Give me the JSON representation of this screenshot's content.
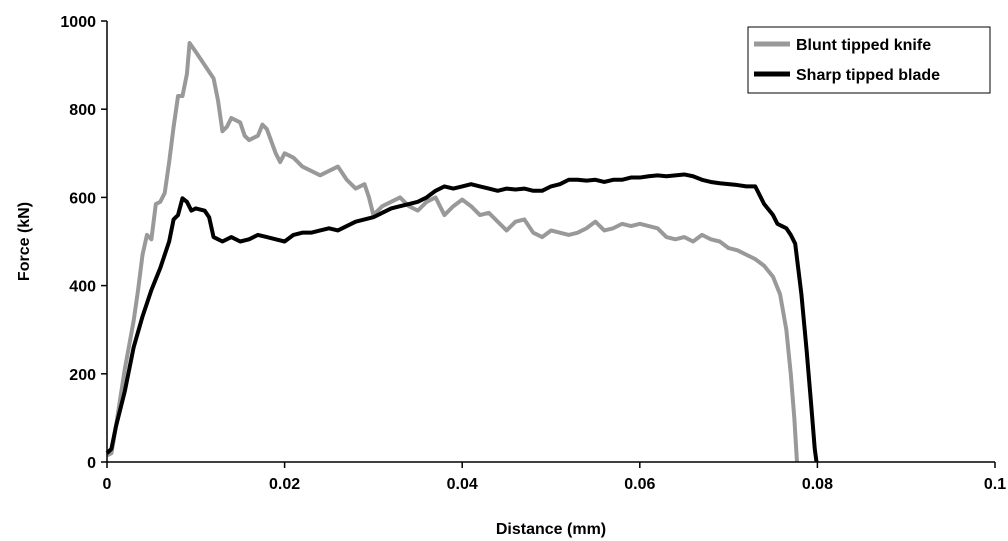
{
  "chart_data": {
    "type": "line",
    "title": "",
    "xlabel": "Distance (mm)",
    "ylabel": "Force (kN)",
    "xlim": [
      0,
      0.1
    ],
    "ylim": [
      0,
      1000
    ],
    "x_ticks": [
      0,
      0.02,
      0.04,
      0.06,
      0.08,
      0.1
    ],
    "x_tick_labels": [
      "0",
      "0.02",
      "0.04",
      "0.06",
      "0.08",
      "0.1"
    ],
    "y_ticks": [
      0,
      200,
      400,
      600,
      800,
      1000
    ],
    "y_tick_labels": [
      "0",
      "200",
      "400",
      "600",
      "800",
      "1000"
    ],
    "grid": false,
    "legend_position": "top-right",
    "series": [
      {
        "name": "Blunt tipped knife",
        "color": "#999999",
        "points": [
          [
            0.0,
            15
          ],
          [
            0.0005,
            20
          ],
          [
            0.001,
            80
          ],
          [
            0.002,
            210
          ],
          [
            0.003,
            320
          ],
          [
            0.0035,
            390
          ],
          [
            0.004,
            470
          ],
          [
            0.0045,
            515
          ],
          [
            0.005,
            505
          ],
          [
            0.0055,
            585
          ],
          [
            0.006,
            590
          ],
          [
            0.0065,
            610
          ],
          [
            0.007,
            680
          ],
          [
            0.0075,
            760
          ],
          [
            0.008,
            830
          ],
          [
            0.0085,
            830
          ],
          [
            0.009,
            880
          ],
          [
            0.0093,
            950
          ],
          [
            0.01,
            930
          ],
          [
            0.011,
            900
          ],
          [
            0.012,
            870
          ],
          [
            0.0125,
            820
          ],
          [
            0.013,
            750
          ],
          [
            0.0135,
            760
          ],
          [
            0.014,
            780
          ],
          [
            0.015,
            770
          ],
          [
            0.0155,
            740
          ],
          [
            0.016,
            730
          ],
          [
            0.017,
            740
          ],
          [
            0.0175,
            765
          ],
          [
            0.018,
            755
          ],
          [
            0.019,
            700
          ],
          [
            0.0195,
            680
          ],
          [
            0.02,
            700
          ],
          [
            0.021,
            690
          ],
          [
            0.022,
            670
          ],
          [
            0.023,
            660
          ],
          [
            0.024,
            650
          ],
          [
            0.025,
            660
          ],
          [
            0.026,
            670
          ],
          [
            0.027,
            640
          ],
          [
            0.028,
            620
          ],
          [
            0.029,
            630
          ],
          [
            0.0295,
            600
          ],
          [
            0.03,
            560
          ],
          [
            0.031,
            580
          ],
          [
            0.032,
            590
          ],
          [
            0.033,
            600
          ],
          [
            0.034,
            580
          ],
          [
            0.035,
            570
          ],
          [
            0.036,
            590
          ],
          [
            0.037,
            600
          ],
          [
            0.038,
            560
          ],
          [
            0.039,
            580
          ],
          [
            0.04,
            595
          ],
          [
            0.041,
            580
          ],
          [
            0.042,
            560
          ],
          [
            0.043,
            565
          ],
          [
            0.044,
            545
          ],
          [
            0.045,
            525
          ],
          [
            0.046,
            545
          ],
          [
            0.047,
            550
          ],
          [
            0.048,
            520
          ],
          [
            0.049,
            510
          ],
          [
            0.05,
            525
          ],
          [
            0.051,
            520
          ],
          [
            0.052,
            515
          ],
          [
            0.053,
            520
          ],
          [
            0.054,
            530
          ],
          [
            0.055,
            545
          ],
          [
            0.056,
            525
          ],
          [
            0.057,
            530
          ],
          [
            0.058,
            540
          ],
          [
            0.059,
            535
          ],
          [
            0.06,
            540
          ],
          [
            0.061,
            535
          ],
          [
            0.062,
            530
          ],
          [
            0.063,
            510
          ],
          [
            0.064,
            505
          ],
          [
            0.065,
            510
          ],
          [
            0.066,
            500
          ],
          [
            0.067,
            515
          ],
          [
            0.068,
            505
          ],
          [
            0.069,
            500
          ],
          [
            0.07,
            485
          ],
          [
            0.071,
            480
          ],
          [
            0.072,
            470
          ],
          [
            0.073,
            460
          ],
          [
            0.074,
            445
          ],
          [
            0.075,
            420
          ],
          [
            0.0758,
            380
          ],
          [
            0.0765,
            300
          ],
          [
            0.077,
            200
          ],
          [
            0.0774,
            100
          ],
          [
            0.0777,
            0
          ]
        ]
      },
      {
        "name": "Sharp tipped blade",
        "color": "#000000",
        "points": [
          [
            0.0,
            20
          ],
          [
            0.0005,
            30
          ],
          [
            0.001,
            80
          ],
          [
            0.002,
            160
          ],
          [
            0.003,
            260
          ],
          [
            0.004,
            330
          ],
          [
            0.005,
            390
          ],
          [
            0.006,
            440
          ],
          [
            0.007,
            500
          ],
          [
            0.0075,
            550
          ],
          [
            0.008,
            560
          ],
          [
            0.0085,
            598
          ],
          [
            0.009,
            590
          ],
          [
            0.0095,
            570
          ],
          [
            0.01,
            575
          ],
          [
            0.011,
            570
          ],
          [
            0.0115,
            555
          ],
          [
            0.012,
            510
          ],
          [
            0.013,
            500
          ],
          [
            0.014,
            510
          ],
          [
            0.015,
            500
          ],
          [
            0.016,
            505
          ],
          [
            0.017,
            515
          ],
          [
            0.018,
            510
          ],
          [
            0.019,
            505
          ],
          [
            0.02,
            500
          ],
          [
            0.021,
            515
          ],
          [
            0.022,
            520
          ],
          [
            0.023,
            520
          ],
          [
            0.024,
            525
          ],
          [
            0.025,
            530
          ],
          [
            0.026,
            525
          ],
          [
            0.027,
            535
          ],
          [
            0.028,
            545
          ],
          [
            0.029,
            550
          ],
          [
            0.03,
            555
          ],
          [
            0.031,
            565
          ],
          [
            0.032,
            575
          ],
          [
            0.033,
            580
          ],
          [
            0.034,
            585
          ],
          [
            0.035,
            590
          ],
          [
            0.036,
            600
          ],
          [
            0.037,
            615
          ],
          [
            0.038,
            625
          ],
          [
            0.039,
            620
          ],
          [
            0.04,
            625
          ],
          [
            0.041,
            630
          ],
          [
            0.042,
            625
          ],
          [
            0.043,
            620
          ],
          [
            0.044,
            615
          ],
          [
            0.045,
            620
          ],
          [
            0.046,
            618
          ],
          [
            0.047,
            620
          ],
          [
            0.048,
            615
          ],
          [
            0.049,
            615
          ],
          [
            0.05,
            625
          ],
          [
            0.051,
            630
          ],
          [
            0.052,
            640
          ],
          [
            0.053,
            640
          ],
          [
            0.054,
            638
          ],
          [
            0.055,
            640
          ],
          [
            0.056,
            635
          ],
          [
            0.057,
            640
          ],
          [
            0.058,
            640
          ],
          [
            0.059,
            645
          ],
          [
            0.06,
            645
          ],
          [
            0.061,
            648
          ],
          [
            0.062,
            650
          ],
          [
            0.063,
            648
          ],
          [
            0.064,
            650
          ],
          [
            0.065,
            652
          ],
          [
            0.066,
            648
          ],
          [
            0.067,
            640
          ],
          [
            0.068,
            635
          ],
          [
            0.069,
            632
          ],
          [
            0.07,
            630
          ],
          [
            0.071,
            628
          ],
          [
            0.072,
            625
          ],
          [
            0.073,
            625
          ],
          [
            0.0735,
            605
          ],
          [
            0.074,
            585
          ],
          [
            0.075,
            560
          ],
          [
            0.0755,
            540
          ],
          [
            0.076,
            535
          ],
          [
            0.0765,
            530
          ],
          [
            0.077,
            515
          ],
          [
            0.0775,
            495
          ],
          [
            0.0782,
            380
          ],
          [
            0.0788,
            250
          ],
          [
            0.0793,
            130
          ],
          [
            0.0797,
            30
          ],
          [
            0.0799,
            0
          ]
        ]
      }
    ]
  }
}
